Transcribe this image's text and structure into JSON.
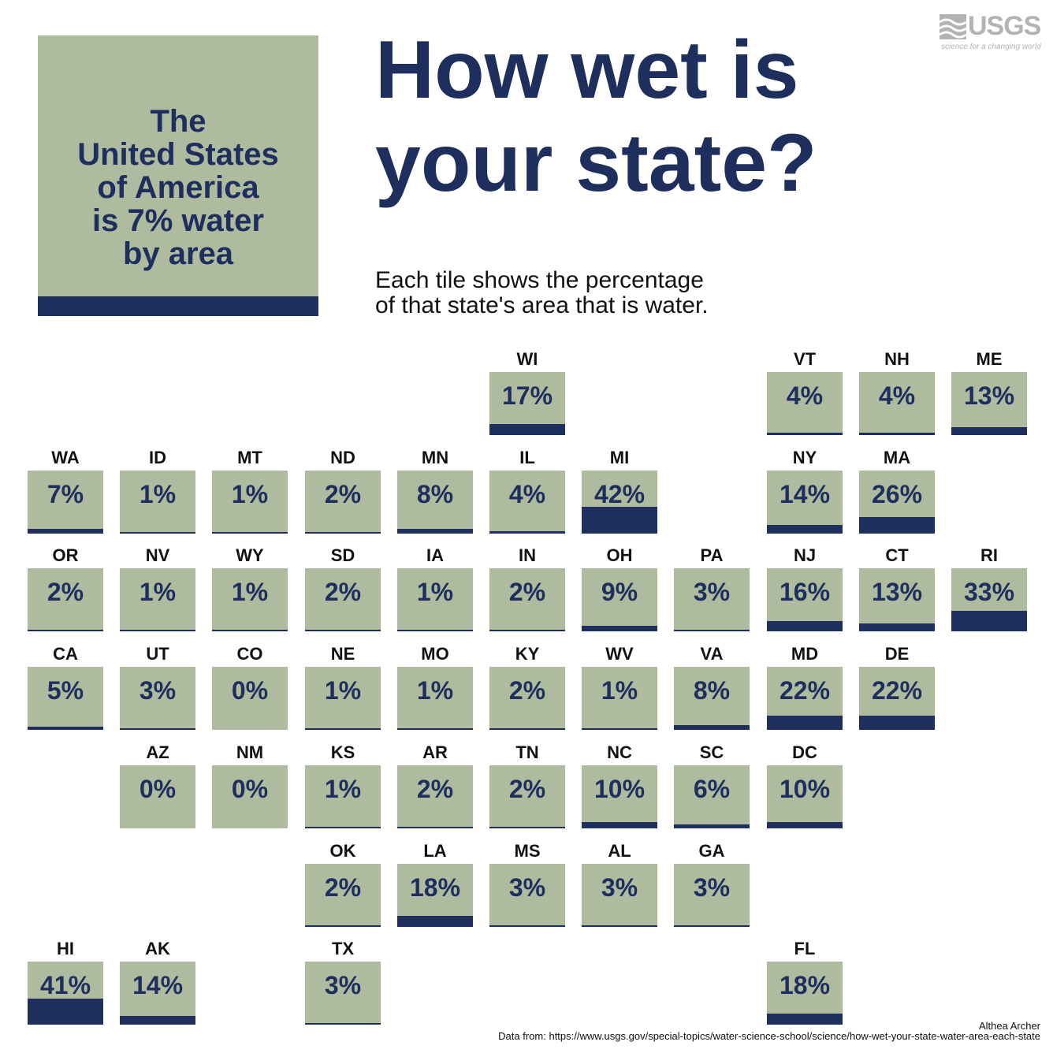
{
  "summary": {
    "text": "The\nUnited States\nof America\nis 7% water\nby area",
    "percent": 7
  },
  "title": "How wet is\nyour state?",
  "subtitle": "Each tile shows the percentage\nof that state's area that is water.",
  "logo": {
    "word": "USGS",
    "tagline": "science for a changing world"
  },
  "credit": "Althea Archer",
  "source": "Data from: https://www.usgs.gov/special-topics/water-science-school/science/how-wet-your-state-water-area-each-state",
  "colors": {
    "land": "#aebb9f",
    "water": "#1e2f5e"
  },
  "chart_data": {
    "type": "table",
    "tiles": [
      {
        "state": "WI",
        "value": 17,
        "col": 5,
        "row": 0
      },
      {
        "state": "VT",
        "value": 4,
        "col": 8,
        "row": 0
      },
      {
        "state": "NH",
        "value": 4,
        "col": 9,
        "row": 0
      },
      {
        "state": "ME",
        "value": 13,
        "col": 10,
        "row": 0
      },
      {
        "state": "WA",
        "value": 7,
        "col": 0,
        "row": 1
      },
      {
        "state": "ID",
        "value": 1,
        "col": 1,
        "row": 1
      },
      {
        "state": "MT",
        "value": 1,
        "col": 2,
        "row": 1
      },
      {
        "state": "ND",
        "value": 2,
        "col": 3,
        "row": 1
      },
      {
        "state": "MN",
        "value": 8,
        "col": 4,
        "row": 1
      },
      {
        "state": "IL",
        "value": 4,
        "col": 5,
        "row": 1
      },
      {
        "state": "MI",
        "value": 42,
        "col": 6,
        "row": 1
      },
      {
        "state": "NY",
        "value": 14,
        "col": 8,
        "row": 1
      },
      {
        "state": "MA",
        "value": 26,
        "col": 9,
        "row": 1
      },
      {
        "state": "OR",
        "value": 2,
        "col": 0,
        "row": 2
      },
      {
        "state": "NV",
        "value": 1,
        "col": 1,
        "row": 2
      },
      {
        "state": "WY",
        "value": 1,
        "col": 2,
        "row": 2
      },
      {
        "state": "SD",
        "value": 2,
        "col": 3,
        "row": 2
      },
      {
        "state": "IA",
        "value": 1,
        "col": 4,
        "row": 2
      },
      {
        "state": "IN",
        "value": 2,
        "col": 5,
        "row": 2
      },
      {
        "state": "OH",
        "value": 9,
        "col": 6,
        "row": 2
      },
      {
        "state": "PA",
        "value": 3,
        "col": 7,
        "row": 2
      },
      {
        "state": "NJ",
        "value": 16,
        "col": 8,
        "row": 2
      },
      {
        "state": "CT",
        "value": 13,
        "col": 9,
        "row": 2
      },
      {
        "state": "RI",
        "value": 33,
        "col": 10,
        "row": 2
      },
      {
        "state": "CA",
        "value": 5,
        "col": 0,
        "row": 3
      },
      {
        "state": "UT",
        "value": 3,
        "col": 1,
        "row": 3
      },
      {
        "state": "CO",
        "value": 0,
        "col": 2,
        "row": 3
      },
      {
        "state": "NE",
        "value": 1,
        "col": 3,
        "row": 3
      },
      {
        "state": "MO",
        "value": 1,
        "col": 4,
        "row": 3
      },
      {
        "state": "KY",
        "value": 2,
        "col": 5,
        "row": 3
      },
      {
        "state": "WV",
        "value": 1,
        "col": 6,
        "row": 3
      },
      {
        "state": "VA",
        "value": 8,
        "col": 7,
        "row": 3
      },
      {
        "state": "MD",
        "value": 22,
        "col": 8,
        "row": 3
      },
      {
        "state": "DE",
        "value": 22,
        "col": 9,
        "row": 3
      },
      {
        "state": "AZ",
        "value": 0,
        "col": 1,
        "row": 4
      },
      {
        "state": "NM",
        "value": 0,
        "col": 2,
        "row": 4
      },
      {
        "state": "KS",
        "value": 1,
        "col": 3,
        "row": 4
      },
      {
        "state": "AR",
        "value": 2,
        "col": 4,
        "row": 4
      },
      {
        "state": "TN",
        "value": 2,
        "col": 5,
        "row": 4
      },
      {
        "state": "NC",
        "value": 10,
        "col": 6,
        "row": 4
      },
      {
        "state": "SC",
        "value": 6,
        "col": 7,
        "row": 4
      },
      {
        "state": "DC",
        "value": 10,
        "col": 8,
        "row": 4
      },
      {
        "state": "OK",
        "value": 2,
        "col": 3,
        "row": 5
      },
      {
        "state": "LA",
        "value": 18,
        "col": 4,
        "row": 5
      },
      {
        "state": "MS",
        "value": 3,
        "col": 5,
        "row": 5
      },
      {
        "state": "AL",
        "value": 3,
        "col": 6,
        "row": 5
      },
      {
        "state": "GA",
        "value": 3,
        "col": 7,
        "row": 5
      },
      {
        "state": "HI",
        "value": 41,
        "col": 0,
        "row": 6
      },
      {
        "state": "AK",
        "value": 14,
        "col": 1,
        "row": 6
      },
      {
        "state": "TX",
        "value": 3,
        "col": 3,
        "row": 6
      },
      {
        "state": "FL",
        "value": 18,
        "col": 8,
        "row": 6
      }
    ]
  }
}
